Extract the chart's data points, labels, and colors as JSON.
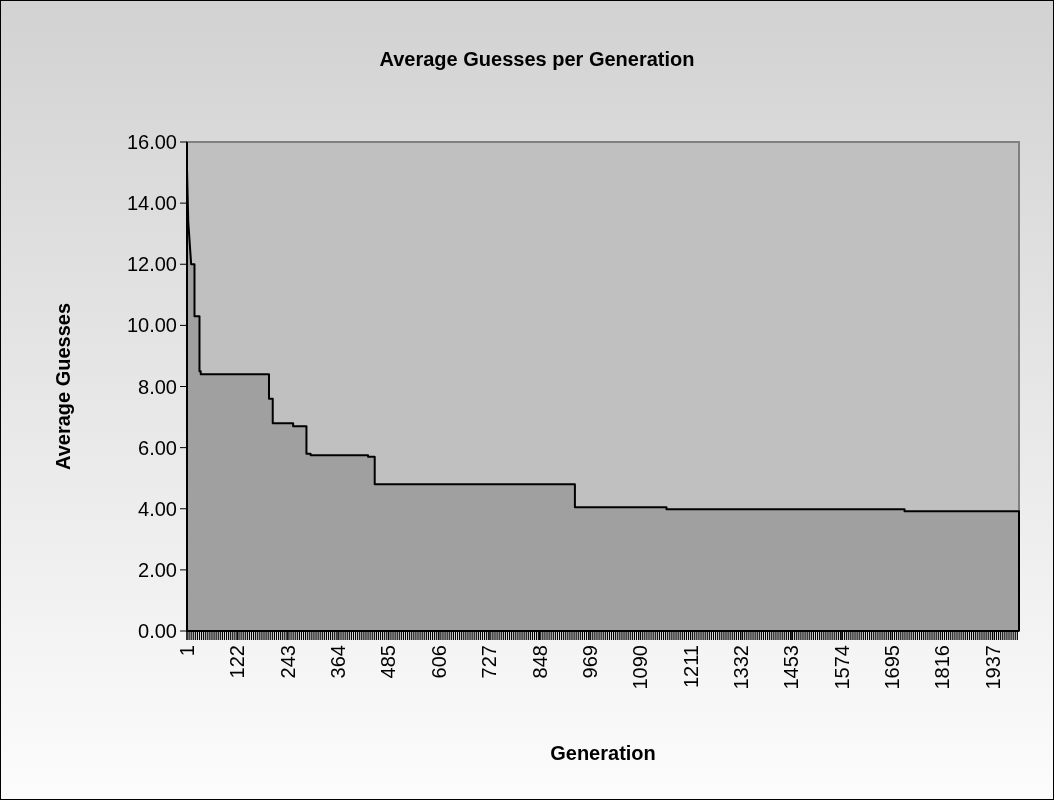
{
  "chart_data": {
    "type": "area",
    "title": "Average Guesses per Generation",
    "xlabel": "Generation",
    "ylabel": "Average Guesses",
    "xlim": [
      1,
      2000
    ],
    "xticks": [
      1,
      122,
      243,
      364,
      485,
      606,
      727,
      848,
      969,
      1090,
      1211,
      1332,
      1453,
      1574,
      1695,
      1816,
      1937
    ],
    "ylim": [
      0,
      16
    ],
    "yticks": [
      {
        "value": 0,
        "label": "0.00"
      },
      {
        "value": 2,
        "label": "2.00"
      },
      {
        "value": 4,
        "label": "4.00"
      },
      {
        "value": 6,
        "label": "6.00"
      },
      {
        "value": 8,
        "label": "8.00"
      },
      {
        "value": 10,
        "label": "10.00"
      },
      {
        "value": 12,
        "label": "12.00"
      },
      {
        "value": 14,
        "label": "14.00"
      },
      {
        "value": 16,
        "label": "16.00"
      }
    ],
    "grid": false,
    "series": [
      {
        "color": "#a0a0a0",
        "x": [
          1,
          4,
          11,
          19,
          19,
          31,
          31,
          34,
          34,
          198,
          198,
          207,
          207,
          256,
          256,
          288,
          288,
          298,
          298,
          436,
          436,
          452,
          452,
          933,
          933,
          1153,
          1153,
          1725,
          1725,
          2000
        ],
        "values": [
          15.1,
          13.4,
          12.0,
          12.0,
          10.3,
          10.3,
          8.5,
          8.5,
          8.4,
          8.4,
          7.6,
          7.6,
          6.8,
          6.8,
          6.7,
          6.7,
          5.8,
          5.8,
          5.75,
          5.75,
          5.7,
          5.7,
          4.8,
          4.8,
          4.05,
          4.05,
          3.98,
          3.98,
          3.92,
          3.92
        ]
      }
    ]
  }
}
